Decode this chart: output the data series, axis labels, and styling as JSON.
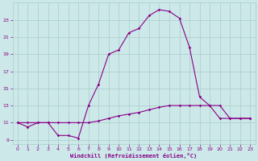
{
  "title": "",
  "xlabel": "Windchill (Refroidissement éolien,°C)",
  "bg_color": "#cce8e8",
  "line_color": "#880088",
  "grid_color": "#aacccc",
  "series1_x": [
    0,
    1,
    2,
    3,
    4,
    5,
    6,
    7,
    8,
    9,
    10,
    11,
    12,
    13,
    14,
    15,
    16,
    17,
    18,
    19,
    20,
    21,
    22,
    23
  ],
  "series1_y": [
    11,
    10.5,
    11,
    11,
    9.5,
    9.5,
    9.2,
    13,
    15.5,
    19,
    19.5,
    21.5,
    22,
    23.5,
    24.2,
    24,
    23.2,
    19.8,
    14,
    13,
    13,
    11.5,
    11.5,
    11.5
  ],
  "series2_x": [
    0,
    1,
    2,
    3,
    4,
    5,
    6,
    7,
    8,
    9,
    10,
    11,
    12,
    13,
    14,
    15,
    16,
    17,
    18,
    19,
    20,
    21,
    22,
    23
  ],
  "series2_y": [
    11,
    11,
    11,
    11,
    11,
    11,
    11,
    11,
    11.2,
    11.5,
    11.8,
    12,
    12.2,
    12.5,
    12.8,
    13,
    13,
    13,
    13,
    13,
    11.5,
    11.5,
    11.5,
    11.5
  ],
  "xlim": [
    -0.5,
    23.5
  ],
  "ylim": [
    8.5,
    25
  ],
  "yticks": [
    9,
    11,
    13,
    15,
    17,
    19,
    21,
    23
  ],
  "xticks": [
    0,
    1,
    2,
    3,
    4,
    5,
    6,
    7,
    8,
    9,
    10,
    11,
    12,
    13,
    14,
    15,
    16,
    17,
    18,
    19,
    20,
    21,
    22,
    23
  ]
}
